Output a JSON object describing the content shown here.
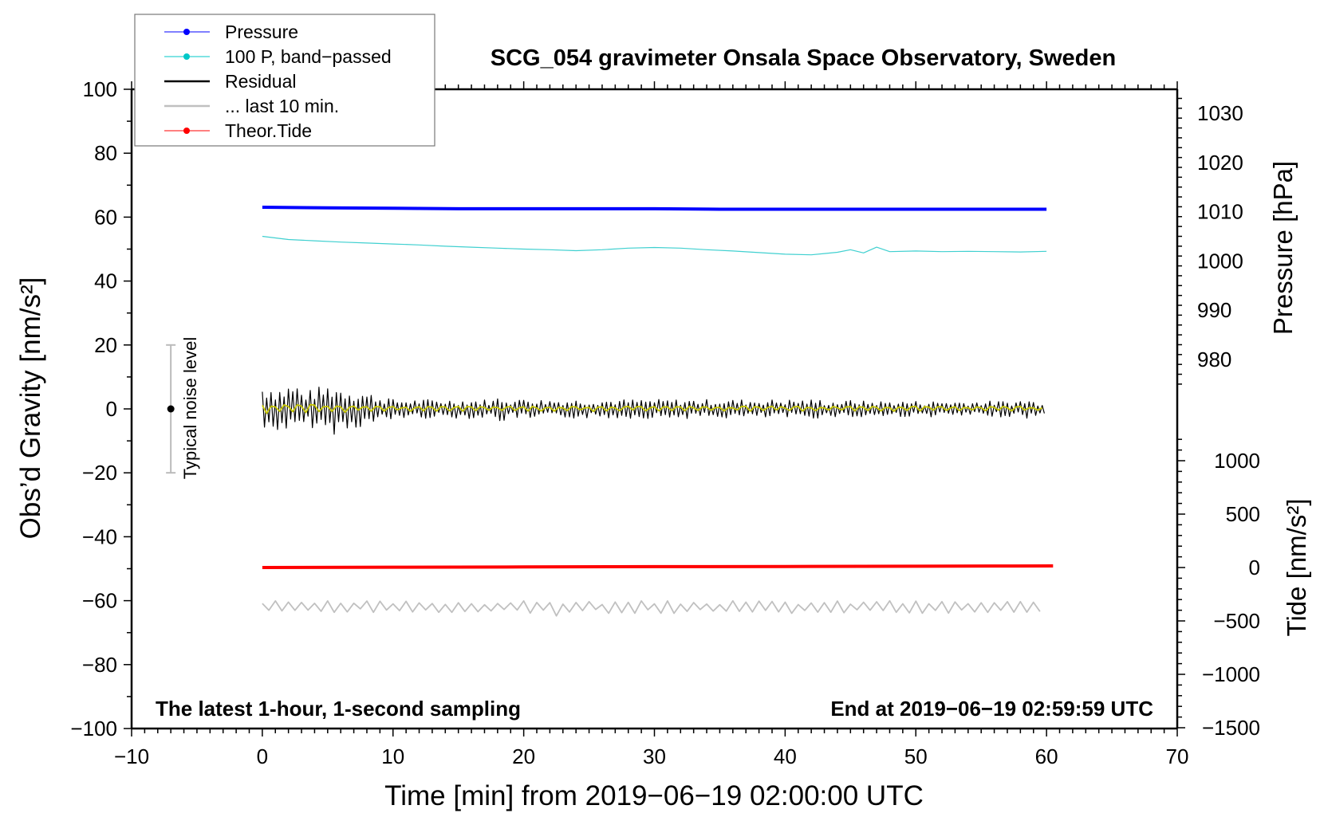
{
  "chart_data": {
    "type": "line",
    "title": "SCG_054 gravimeter Onsala Space Observatory, Sweden",
    "xlabel": "Time [min] from 2019−06−19 02:00:00 UTC",
    "ylabel": "Obs’d Gravity [nm/s²]",
    "ylabel_right_top": "Pressure [hPa]",
    "ylabel_right_bottom": "Tide [nm/s²]",
    "xlim": [
      -10,
      70
    ],
    "ylim": [
      -100,
      100
    ],
    "pressure_ticks": [
      1030,
      1020,
      1010,
      1000,
      990,
      980
    ],
    "tide_ticks": [
      1000,
      500,
      0,
      -500,
      -1000,
      -1500
    ],
    "x_ticks": [
      -10,
      0,
      10,
      20,
      30,
      40,
      50,
      60,
      70
    ],
    "y_ticks": [
      100,
      80,
      60,
      40,
      20,
      0,
      -20,
      -40,
      -60,
      -80,
      -100
    ],
    "annotation_left": "The latest 1-hour, 1-second sampling",
    "annotation_right": "End at 2019−06−19 02:59:59 UTC",
    "noise_label": "Typical noise level",
    "noise_level": {
      "x": -7,
      "center": 0,
      "range": [
        -20,
        20
      ]
    },
    "legend": {
      "placement": "top-left",
      "entries": [
        {
          "label": "Pressure",
          "color": "#0000ff",
          "marker": true
        },
        {
          "label": "100 P, band−passed",
          "color": "#00c8c8",
          "marker": true
        },
        {
          "label": "Residual",
          "color": "#000000",
          "marker": false
        },
        {
          "label": "... last 10 min.",
          "color": "#c0c0c0",
          "marker": false
        },
        {
          "label": "Theor.Tide",
          "color": "#ff0000",
          "marker": true
        }
      ]
    },
    "series": [
      {
        "name": "Pressure",
        "axis": "pressure_hPa",
        "x": [
          0,
          5,
          10,
          15,
          20,
          25,
          30,
          35,
          40,
          45,
          50,
          55,
          60
        ],
        "values": [
          1010.9,
          1010.8,
          1010.7,
          1010.6,
          1010.6,
          1010.6,
          1010.6,
          1010.5,
          1010.5,
          1010.5,
          1010.5,
          1010.5,
          1010.5
        ]
      },
      {
        "name": "100 P, band-passed",
        "axis": "gravity",
        "x": [
          0,
          2,
          4,
          6,
          8,
          10,
          12,
          14,
          16,
          18,
          20,
          22,
          24,
          26,
          28,
          30,
          32,
          34,
          36,
          38,
          40,
          42,
          43,
          44,
          45,
          46,
          47,
          48,
          50,
          52,
          54,
          56,
          58,
          60
        ],
        "values": [
          54,
          53,
          52.6,
          52.2,
          51.9,
          51.6,
          51.3,
          50.9,
          50.6,
          50.3,
          50,
          49.8,
          49.5,
          49.8,
          50.3,
          50.5,
          50.3,
          49.8,
          49.4,
          48.9,
          48.4,
          48.2,
          48.6,
          49,
          49.8,
          48.8,
          50.6,
          49.2,
          49.4,
          49.2,
          49.3,
          49.2,
          49.1,
          49.3
        ]
      },
      {
        "name": "Residual",
        "axis": "gravity",
        "x_step_min": 1,
        "center": 0,
        "amplitude": [
          8,
          7,
          8,
          6,
          7,
          8,
          7,
          6,
          5,
          4,
          3,
          3,
          3,
          3,
          3,
          3,
          3,
          3,
          4,
          3,
          4,
          3,
          3,
          3,
          3,
          3,
          3,
          3,
          3,
          3,
          3,
          3,
          3,
          3,
          3,
          3,
          3,
          3,
          3,
          3,
          3,
          3,
          3,
          2.5,
          2.5,
          3,
          2.5,
          2.5,
          2.5,
          2.5,
          2.5,
          2.5,
          2.5,
          2.5,
          2.5,
          2.5,
          2.5,
          2.5,
          3,
          2.5
        ]
      },
      {
        "name": "Residual smoothed",
        "axis": "gravity",
        "x_step_min": 1,
        "center": 0,
        "amplitude": [
          1.5,
          1.5,
          1.5,
          1.5,
          1.2,
          1.2,
          1.2,
          1,
          1,
          0.8,
          0.8,
          0.8,
          0.8,
          0.8,
          0.8,
          0.8,
          0.8,
          0.8,
          0.8,
          0.8,
          0.8,
          0.8,
          0.8,
          0.8,
          0.8,
          0.8,
          0.8,
          0.8,
          0.8,
          0.8,
          0.8,
          0.8,
          0.8,
          0.8,
          0.8,
          0.8,
          0.8,
          0.8,
          0.8,
          0.8,
          0.8,
          0.8,
          0.8,
          0.8,
          0.8,
          0.8,
          0.8,
          0.8,
          0.8,
          0.8,
          0.8,
          0.8,
          0.8,
          0.8,
          0.8,
          0.8,
          0.8,
          0.8,
          0.8,
          0.8
        ]
      },
      {
        "name": "... last 10 min.",
        "axis": "gravity",
        "x_step_min": 1,
        "center": -62,
        "amplitude": [
          2,
          2,
          2,
          1.5,
          2,
          2,
          2,
          1.5,
          2,
          2,
          2,
          2,
          1.5,
          2,
          2,
          2,
          2,
          2,
          2,
          2,
          2,
          2,
          3,
          2,
          2,
          2,
          2,
          2,
          2,
          2,
          2,
          2,
          2,
          2,
          2,
          2,
          2,
          2,
          2,
          2,
          2,
          2,
          2,
          2,
          2,
          2,
          2,
          2,
          3.5,
          2,
          2,
          2,
          2,
          2,
          2,
          2,
          2,
          2,
          2,
          2
        ]
      },
      {
        "name": "Theor.Tide",
        "axis": "tide_nm_s2",
        "x": [
          0,
          10,
          20,
          30,
          40,
          50,
          56,
          60.5
        ],
        "values": [
          0,
          3,
          5,
          8,
          10,
          12,
          14,
          15
        ]
      }
    ]
  }
}
